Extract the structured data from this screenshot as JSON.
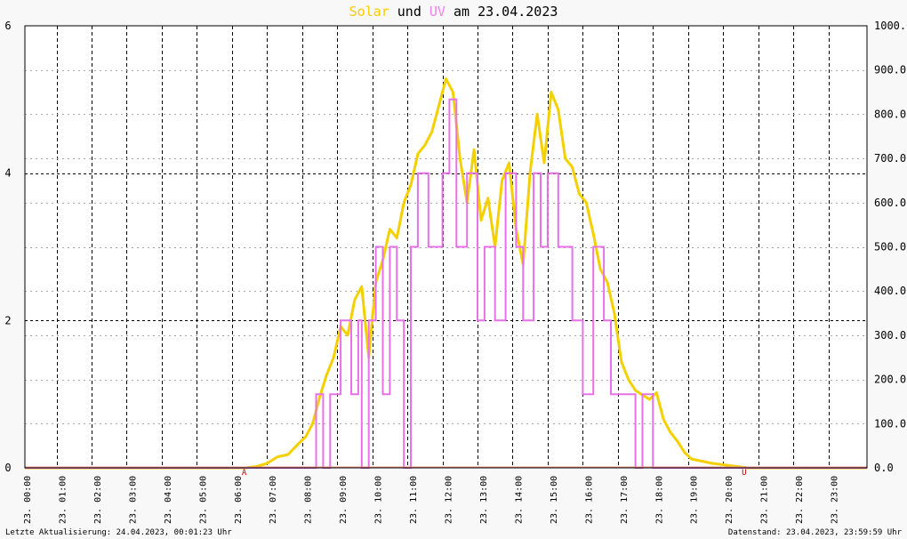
{
  "header": {
    "title_solar": "Solar",
    "title_und": "und",
    "title_uv": "UV",
    "title_date": "am 23.04.2023"
  },
  "footer": {
    "left": "Letzte Aktualisierung: 24.04.2023, 00:01:23 Uhr",
    "right": "Datenstand: 23.04.2023, 23:59:59 Uhr"
  },
  "markers": {
    "sunrise": "A",
    "sunset": "U",
    "sunrise_hour": 6.25,
    "sunset_hour": 20.5
  },
  "colors": {
    "solar": "#f4d000",
    "uv": "#e870e8",
    "solar_title": "#ffcc00",
    "uv_title": "#ee82ee",
    "baseline": "#e89080",
    "marker": "#cc0000"
  },
  "chart_data": {
    "type": "line",
    "title": "Solar und UV am 23.04.2023",
    "x_unit": "hour of day",
    "x_ticks": [
      "23. 00:00",
      "23. 01:00",
      "23. 02:00",
      "23. 03:00",
      "23. 04:00",
      "23. 05:00",
      "23. 06:00",
      "23. 07:00",
      "23. 08:00",
      "23. 09:00",
      "23. 10:00",
      "23. 11:00",
      "23. 12:00",
      "23. 13:00",
      "23. 14:00",
      "23. 15:00",
      "23. 16:00",
      "23. 17:00",
      "23. 18:00",
      "23. 19:00",
      "23. 20:00",
      "23. 21:00",
      "23. 22:00",
      "23. 23:00"
    ],
    "left_axis": {
      "ylim": [
        0,
        6
      ],
      "ticks": [
        "0",
        "2",
        "4",
        "6"
      ]
    },
    "right_axis": {
      "ylim": [
        0,
        1000
      ],
      "ticks": [
        "0.0",
        "100.0",
        "200.0",
        "300.0",
        "400.0",
        "500.0",
        "600.0",
        "700.0",
        "800.0",
        "900.0",
        "1000.0"
      ]
    },
    "grid": true,
    "series": [
      {
        "name": "Solar",
        "axis": "right",
        "x": [
          0,
          6.3,
          6.6,
          6.9,
          7.2,
          7.5,
          7.8,
          8.0,
          8.2,
          8.4,
          8.6,
          8.8,
          9.0,
          9.2,
          9.4,
          9.6,
          9.8,
          10.0,
          10.2,
          10.4,
          10.6,
          10.8,
          11.0,
          11.2,
          11.4,
          11.6,
          11.8,
          12.0,
          12.2,
          12.4,
          12.6,
          12.8,
          13.0,
          13.2,
          13.4,
          13.6,
          13.8,
          14.0,
          14.2,
          14.4,
          14.6,
          14.8,
          15.0,
          15.2,
          15.4,
          15.6,
          15.8,
          16.0,
          16.2,
          16.4,
          16.6,
          16.8,
          17.0,
          17.2,
          17.4,
          17.6,
          17.8,
          18.0,
          18.2,
          18.4,
          18.6,
          18.8,
          19.0,
          19.3,
          19.6,
          20.0,
          20.3,
          20.6,
          24
        ],
        "y": [
          0,
          0,
          3,
          10,
          25,
          30,
          55,
          70,
          100,
          160,
          210,
          250,
          320,
          300,
          380,
          410,
          250,
          420,
          470,
          540,
          520,
          600,
          640,
          710,
          730,
          760,
          820,
          880,
          850,
          700,
          600,
          720,
          560,
          610,
          500,
          650,
          690,
          540,
          460,
          670,
          800,
          690,
          850,
          810,
          700,
          680,
          620,
          600,
          530,
          450,
          420,
          350,
          240,
          200,
          175,
          165,
          155,
          170,
          110,
          80,
          60,
          35,
          20,
          15,
          10,
          6,
          3,
          0,
          0
        ]
      },
      {
        "name": "UV",
        "axis": "left",
        "x": [
          0,
          8.3,
          8.5,
          8.7,
          9.0,
          9.3,
          9.5,
          9.6,
          9.8,
          10.0,
          10.2,
          10.4,
          10.6,
          10.8,
          11.0,
          11.2,
          11.5,
          11.9,
          12.1,
          12.3,
          12.6,
          12.9,
          13.1,
          13.4,
          13.7,
          14.0,
          14.2,
          14.5,
          14.7,
          14.9,
          15.2,
          15.6,
          15.9,
          16.2,
          16.5,
          16.7,
          17.1,
          17.4,
          17.6,
          17.9,
          18.1,
          24
        ],
        "y": [
          0,
          1,
          0,
          1,
          2,
          1,
          2,
          0,
          2,
          3,
          1,
          3,
          2,
          0,
          3,
          4,
          3,
          4,
          5,
          3,
          4,
          2,
          3,
          2,
          4,
          3,
          2,
          4,
          3,
          4,
          3,
          2,
          1,
          3,
          2,
          1,
          1,
          0,
          1,
          0,
          0,
          0
        ]
      }
    ]
  }
}
